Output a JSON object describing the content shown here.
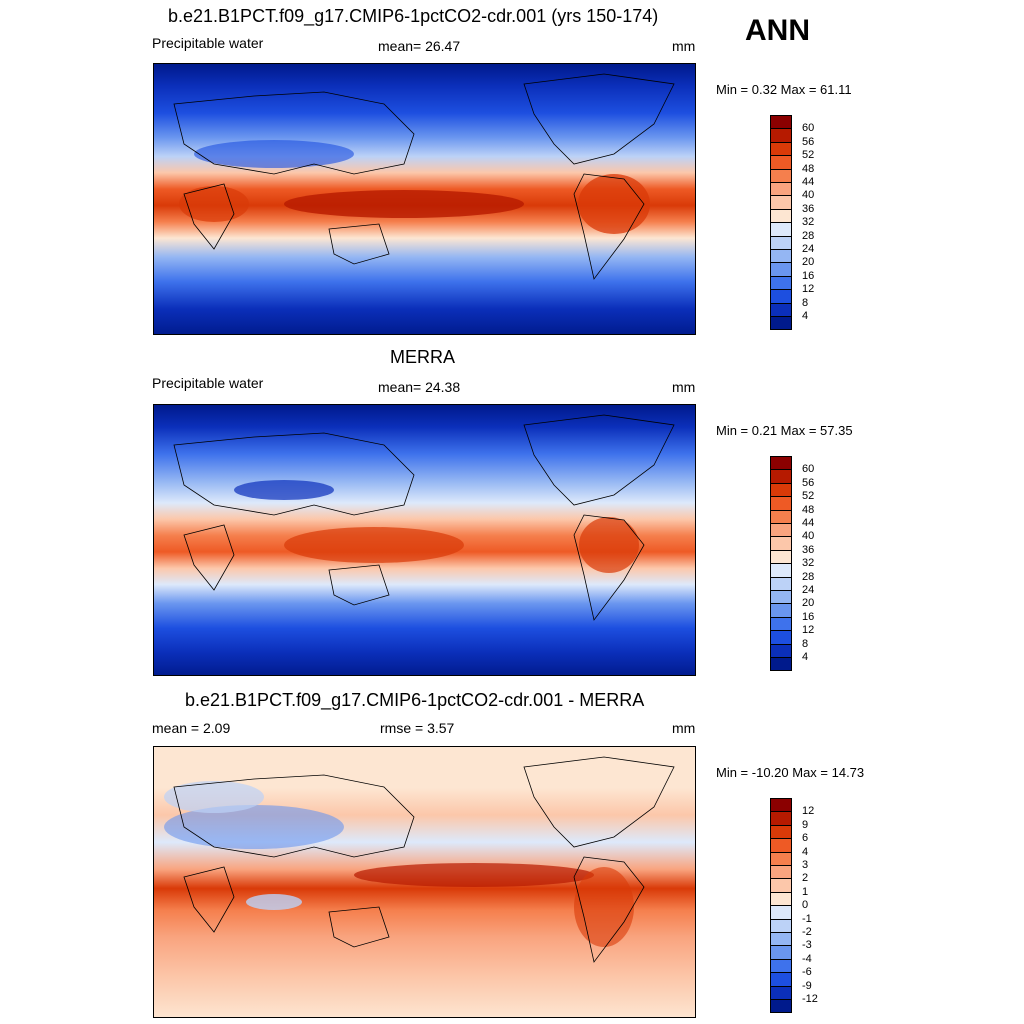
{
  "season": "ANN",
  "panels": [
    {
      "title": "b.e21.B1PCT.f09_g17.CMIP6-1pctCO2-cdr.001 (yrs 150-174)",
      "left_label": "Precipitable water",
      "center_label": "mean=  26.47",
      "right_label": "mm",
      "minmax": "Min =   0.32 Max =  61.11",
      "kind": "abs"
    },
    {
      "title": "MERRA",
      "left_label": "Precipitable water",
      "center_label": "mean=  24.38",
      "right_label": "mm",
      "minmax": "Min =   0.21 Max =  57.35",
      "kind": "abs"
    },
    {
      "title": "b.e21.B1PCT.f09_g17.CMIP6-1pctCO2-cdr.001 - MERRA",
      "left_label": "mean =   2.09",
      "center_label": "rmse =   3.57",
      "right_label": "mm",
      "minmax": "Min = -10.20 Max =  14.73",
      "kind": "diff"
    }
  ],
  "colorbars": {
    "abs": {
      "labels": [
        "60",
        "56",
        "52",
        "48",
        "44",
        "40",
        "36",
        "32",
        "28",
        "24",
        "20",
        "16",
        "12",
        "8",
        "4"
      ],
      "colors": [
        "#8b0000",
        "#b61a00",
        "#d93a08",
        "#ee5a25",
        "#f57f4d",
        "#f9a47f",
        "#fcc7aa",
        "#fde6d2",
        "#dde9fb",
        "#bcd2f7",
        "#94b6f3",
        "#6a96ef",
        "#3e72ec",
        "#1d4fe0",
        "#0b2fba",
        "#001a8c"
      ]
    },
    "diff": {
      "labels": [
        "12",
        "9",
        "6",
        "4",
        "3",
        "2",
        "1",
        "0",
        "-1",
        "-2",
        "-3",
        "-4",
        "-6",
        "-9",
        "-12"
      ],
      "colors": [
        "#8b0000",
        "#b61a00",
        "#d93a08",
        "#ee5a25",
        "#f57f4d",
        "#f9a47f",
        "#fcc7aa",
        "#fde6d2",
        "#dde9fb",
        "#bcd2f7",
        "#94b6f3",
        "#6a96ef",
        "#3e72ec",
        "#1d4fe0",
        "#0b2fba",
        "#001a8c"
      ]
    }
  }
}
